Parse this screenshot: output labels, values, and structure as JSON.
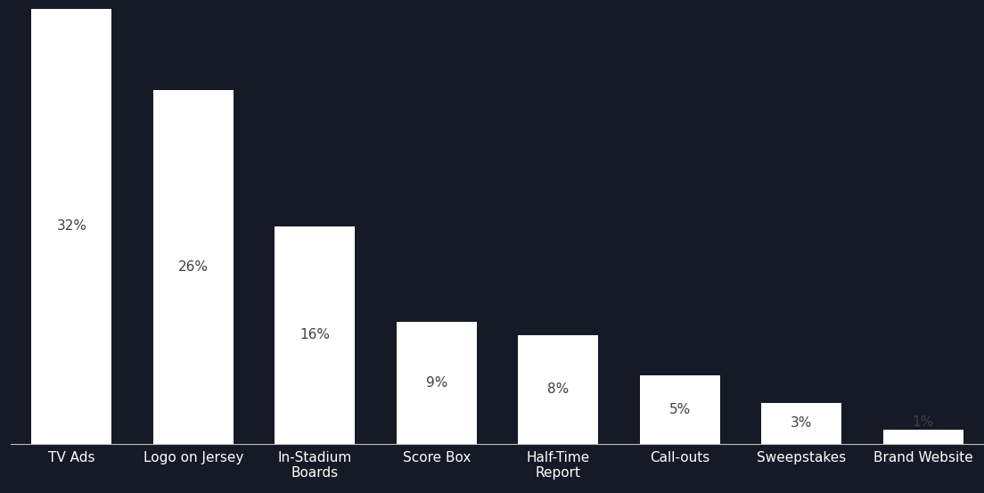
{
  "chart_data": {
    "type": "bar",
    "categories": [
      "TV Ads",
      "Logo on Jersey",
      "In-Stadium\nBoards",
      "Score Box",
      "Half-Time\nReport",
      "Call-outs",
      "Sweepstakes",
      "Brand Website"
    ],
    "values": [
      32,
      26,
      16,
      9,
      8,
      5,
      3,
      1
    ],
    "value_labels": [
      "32%",
      "26%",
      "16%",
      "9%",
      "8%",
      "5%",
      "3%",
      "1%"
    ],
    "color": "#ffffff",
    "data_labels": true,
    "tick_labels": "x",
    "grid": false
  }
}
